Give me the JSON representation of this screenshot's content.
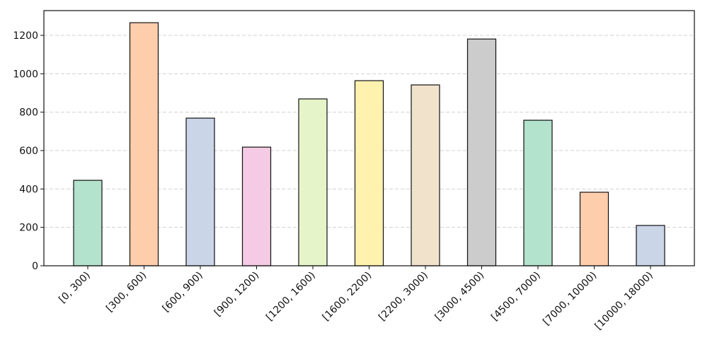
{
  "chart_data": {
    "type": "bar",
    "categories": [
      "[0, 300)",
      "[300, 600)",
      "[600, 900)",
      "[900, 1200)",
      "[1200, 1600)",
      "[1600, 2200)",
      "[2200, 3000)",
      "[3000, 4500)",
      "[4500, 7000)",
      "[7000, 10000)",
      "[10000, 18000)"
    ],
    "values": [
      445,
      1266,
      769,
      618,
      869,
      964,
      942,
      1181,
      758,
      383,
      210
    ],
    "colors": [
      "#b3e2cd",
      "#fdcdac",
      "#cbd5e8",
      "#f4cae4",
      "#e6f5c9",
      "#fff2ae",
      "#f1e2cc",
      "#cccccc",
      "#b3e2cd",
      "#fdcdac",
      "#cbd5e8"
    ],
    "ylim": [
      0,
      1329
    ],
    "yticks": [
      0,
      200,
      400,
      600,
      800,
      1000,
      1200
    ],
    "grid": true
  }
}
